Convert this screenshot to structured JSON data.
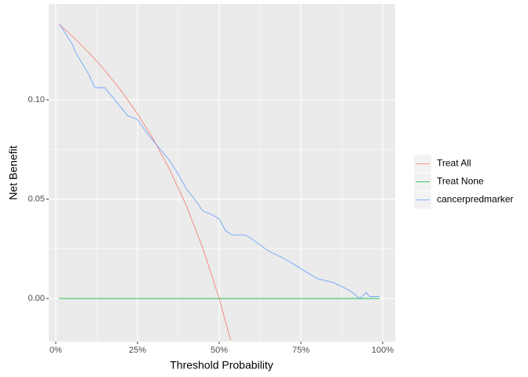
{
  "chart_data": {
    "type": "line",
    "x_label": "Threshold Probability",
    "y_label": "Net Benefit",
    "xlim": [
      -0.0216,
      1.0385
    ],
    "ylim": [
      -0.0217,
      0.1482
    ],
    "xticks": [
      {
        "value": 0,
        "label": "0%"
      },
      {
        "value": 0.25,
        "label": "25%"
      },
      {
        "value": 0.5,
        "label": "50%"
      },
      {
        "value": 0.75,
        "label": "75%"
      },
      {
        "value": 1,
        "label": "100%"
      }
    ],
    "yticks": [
      {
        "value": 0,
        "label": "0.00"
      },
      {
        "value": 0.05,
        "label": "0.05"
      },
      {
        "value": 0.1,
        "label": "0.10"
      }
    ],
    "grid": true,
    "legend": "right",
    "series": [
      {
        "name": "Treat All",
        "color": "#F8766D",
        "x": [
          0.01,
          0.05,
          0.1,
          0.15,
          0.2,
          0.25,
          0.3,
          0.35,
          0.4,
          0.45,
          0.5,
          0.535
        ],
        "values": [
          0.138,
          0.1321,
          0.1239,
          0.1148,
          0.1046,
          0.0929,
          0.0797,
          0.0643,
          0.0465,
          0.0253,
          0,
          -0.021
        ]
      },
      {
        "name": "Treat None",
        "color": "#00BA38",
        "x": [
          0.01,
          0.99
        ],
        "values": [
          0,
          0
        ]
      },
      {
        "name": "cancerpredmarker",
        "color": "#619CFF",
        "x": [
          0.012,
          0.05,
          0.06,
          0.1,
          0.12,
          0.15,
          0.18,
          0.2,
          0.22,
          0.25,
          0.28,
          0.32,
          0.35,
          0.38,
          0.4,
          0.42,
          0.45,
          0.48,
          0.5,
          0.52,
          0.54,
          0.58,
          0.6,
          0.65,
          0.7,
          0.75,
          0.8,
          0.85,
          0.9,
          0.93,
          0.95,
          0.96,
          0.99
        ],
        "values": [
          0.138,
          0.128,
          0.124,
          0.113,
          0.106,
          0.106,
          0.1,
          0.096,
          0.092,
          0.09,
          0.083,
          0.075,
          0.069,
          0.061,
          0.055,
          0.051,
          0.044,
          0.042,
          0.04,
          0.034,
          0.032,
          0.032,
          0.03,
          0.024,
          0.02,
          0.015,
          0.01,
          0.008,
          0.004,
          0.0,
          0.003,
          0.001,
          0.001
        ]
      }
    ]
  }
}
